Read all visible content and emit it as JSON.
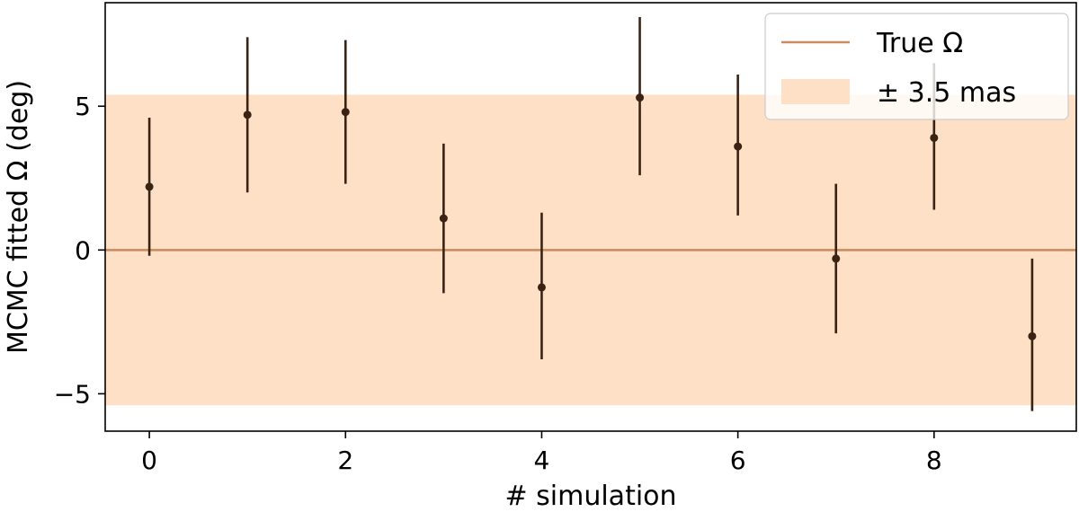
{
  "chart_data": {
    "type": "scatter",
    "xlabel": "# simulation",
    "ylabel": "MCMC fitted Ω (deg)",
    "xlim": [
      -0.45,
      9.45
    ],
    "ylim": [
      -6.3,
      8.6
    ],
    "x_ticks": [
      0,
      2,
      4,
      6,
      8
    ],
    "y_ticks": [
      -5,
      0,
      5
    ],
    "y_tick_labels": [
      "−5",
      "0",
      "5"
    ],
    "grid": false,
    "legend_position": "top-right",
    "true_value": 0,
    "band": [
      -5.4,
      5.4
    ],
    "series": [
      {
        "name": "",
        "x": [
          0,
          1,
          2,
          3,
          4,
          5,
          6,
          7,
          8,
          9
        ],
        "y": [
          2.2,
          4.7,
          4.8,
          1.1,
          -1.3,
          5.3,
          3.6,
          -0.3,
          3.9,
          -3.0
        ],
        "err_low": [
          2.4,
          2.7,
          2.5,
          2.6,
          2.5,
          2.7,
          2.4,
          2.6,
          2.5,
          2.6
        ],
        "err_high": [
          2.4,
          2.7,
          2.5,
          2.6,
          2.6,
          2.8,
          2.5,
          2.6,
          2.6,
          2.7
        ]
      }
    ],
    "legend": [
      {
        "label": "True Ω",
        "kind": "line"
      },
      {
        "label": "± 3.5 mas",
        "kind": "patch"
      }
    ],
    "colors": {
      "line": "#c98a5e",
      "band": "#fde0c5",
      "points": "#3b2314"
    }
  }
}
